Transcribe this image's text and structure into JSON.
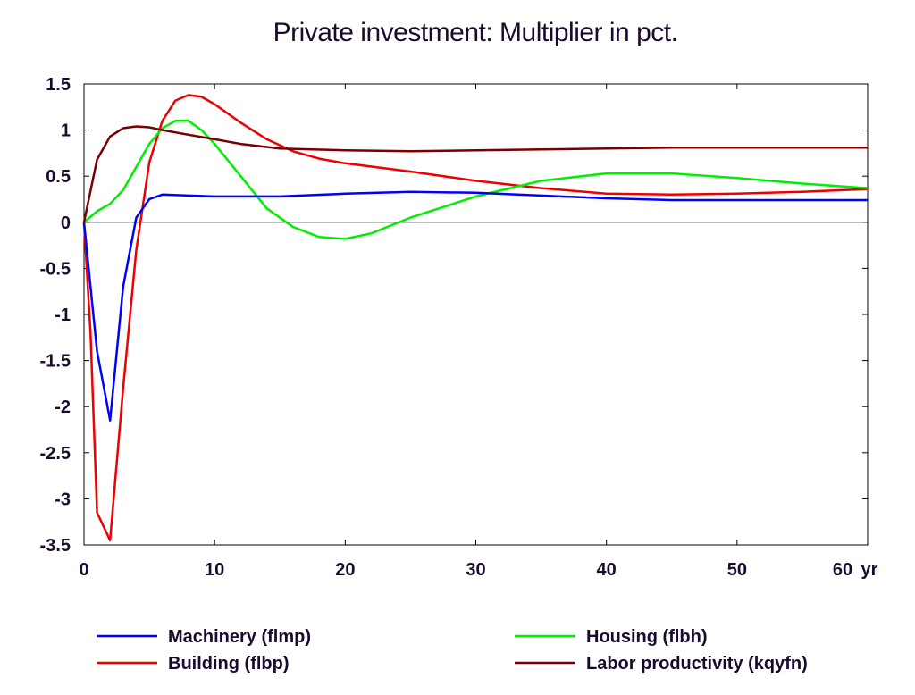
{
  "chart_data": {
    "type": "line",
    "title": "Private investment: Multiplier in pct.",
    "x_unit_label": "yr",
    "xlim": [
      0,
      60
    ],
    "ylim": [
      -3.5,
      1.5
    ],
    "x_ticks": [
      "0",
      "10",
      "20",
      "30",
      "40",
      "50",
      "60"
    ],
    "y_ticks": [
      "1.5",
      "1",
      "0.5",
      "0",
      "-0.5",
      "-1",
      "-1.5",
      "-2",
      "-2.5",
      "-3",
      "-3.5"
    ],
    "grid": false,
    "legend_position": "bottom",
    "series": [
      {
        "name": "Machinery (flmp)",
        "color": "#0000ff",
        "points": [
          [
            0,
            0
          ],
          [
            1,
            -1.4
          ],
          [
            2,
            -2.15
          ],
          [
            3,
            -0.7
          ],
          [
            4,
            0.05
          ],
          [
            5,
            0.25
          ],
          [
            6,
            0.3
          ],
          [
            8,
            0.29
          ],
          [
            10,
            0.28
          ],
          [
            15,
            0.28
          ],
          [
            20,
            0.31
          ],
          [
            25,
            0.33
          ],
          [
            30,
            0.32
          ],
          [
            35,
            0.29
          ],
          [
            40,
            0.26
          ],
          [
            45,
            0.24
          ],
          [
            50,
            0.24
          ],
          [
            55,
            0.24
          ],
          [
            60,
            0.24
          ]
        ]
      },
      {
        "name": "Housing (flbh)",
        "color": "#00ee00",
        "points": [
          [
            0,
            0
          ],
          [
            1,
            0.12
          ],
          [
            2,
            0.2
          ],
          [
            3,
            0.35
          ],
          [
            4,
            0.6
          ],
          [
            5,
            0.85
          ],
          [
            6,
            1.02
          ],
          [
            7,
            1.1
          ],
          [
            8,
            1.1
          ],
          [
            9,
            1.0
          ],
          [
            10,
            0.85
          ],
          [
            12,
            0.5
          ],
          [
            14,
            0.15
          ],
          [
            16,
            -0.05
          ],
          [
            18,
            -0.16
          ],
          [
            20,
            -0.18
          ],
          [
            22,
            -0.12
          ],
          [
            25,
            0.05
          ],
          [
            30,
            0.28
          ],
          [
            35,
            0.45
          ],
          [
            40,
            0.53
          ],
          [
            45,
            0.53
          ],
          [
            50,
            0.48
          ],
          [
            55,
            0.42
          ],
          [
            60,
            0.37
          ]
        ]
      },
      {
        "name": "Building (flbp)",
        "color": "#ee0000",
        "points": [
          [
            0,
            0
          ],
          [
            0.5,
            -1.2
          ],
          [
            1,
            -3.15
          ],
          [
            2,
            -3.45
          ],
          [
            3,
            -1.8
          ],
          [
            4,
            -0.3
          ],
          [
            5,
            0.65
          ],
          [
            6,
            1.1
          ],
          [
            7,
            1.32
          ],
          [
            8,
            1.38
          ],
          [
            9,
            1.36
          ],
          [
            10,
            1.28
          ],
          [
            12,
            1.08
          ],
          [
            14,
            0.9
          ],
          [
            16,
            0.77
          ],
          [
            18,
            0.69
          ],
          [
            20,
            0.64
          ],
          [
            25,
            0.55
          ],
          [
            30,
            0.45
          ],
          [
            35,
            0.37
          ],
          [
            40,
            0.31
          ],
          [
            45,
            0.3
          ],
          [
            50,
            0.31
          ],
          [
            55,
            0.33
          ],
          [
            60,
            0.36
          ]
        ]
      },
      {
        "name": "Labor productivity (kqyfn)",
        "color": "#7a0000",
        "points": [
          [
            0,
            0
          ],
          [
            1,
            0.68
          ],
          [
            2,
            0.93
          ],
          [
            3,
            1.02
          ],
          [
            4,
            1.04
          ],
          [
            5,
            1.03
          ],
          [
            6,
            1.0
          ],
          [
            8,
            0.95
          ],
          [
            10,
            0.9
          ],
          [
            12,
            0.85
          ],
          [
            15,
            0.8
          ],
          [
            20,
            0.78
          ],
          [
            25,
            0.77
          ],
          [
            30,
            0.78
          ],
          [
            35,
            0.79
          ],
          [
            40,
            0.8
          ],
          [
            45,
            0.81
          ],
          [
            50,
            0.81
          ],
          [
            55,
            0.81
          ],
          [
            60,
            0.81
          ]
        ]
      }
    ]
  }
}
